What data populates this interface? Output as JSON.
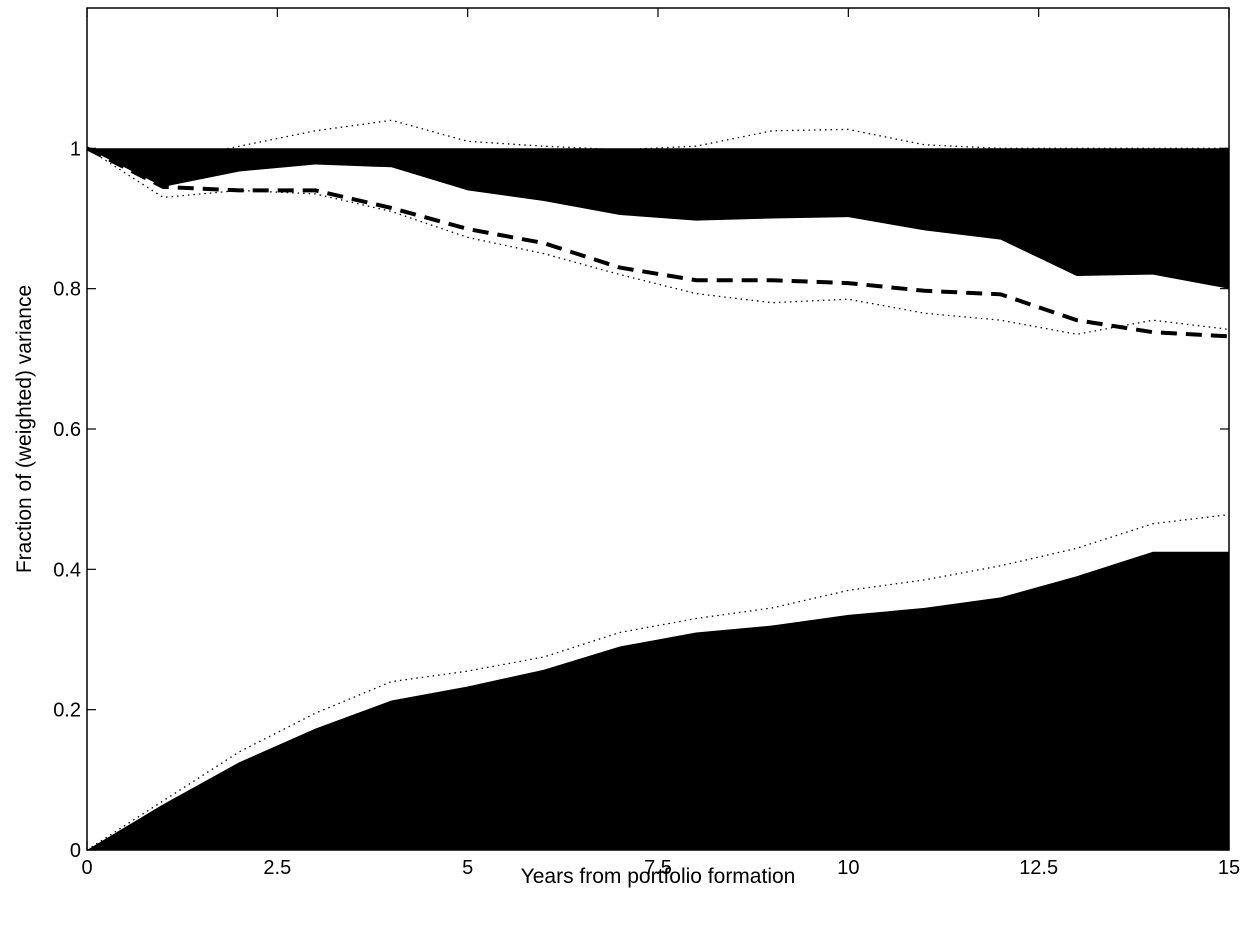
{
  "chart_data": {
    "type": "area",
    "title": "",
    "xlabel": "Years from portfolio formation",
    "ylabel": "Fraction of (weighted) variance",
    "xlim": [
      0,
      15
    ],
    "ylim": [
      0,
      1.2
    ],
    "x_ticks": [
      0,
      2.5,
      5,
      7.5,
      10,
      12.5,
      15
    ],
    "x_tick_labels": [
      "0",
      "2.5",
      "5",
      "7.5",
      "10",
      "12.5",
      "15"
    ],
    "y_ticks": [
      0,
      0.2,
      0.4,
      0.6,
      0.8,
      1.0
    ],
    "y_tick_labels": [
      "0",
      "0.2",
      "0.4",
      "0.6",
      "0.8",
      "1"
    ],
    "grid": false,
    "legend": "none",
    "x": [
      0,
      1,
      2,
      3,
      4,
      5,
      6,
      7,
      8,
      9,
      10,
      11,
      12,
      13,
      14,
      15
    ],
    "series": [
      {
        "style": "black-filled-area-from-0",
        "color": "#000000",
        "values": [
          0.0,
          0.065,
          0.125,
          0.173,
          0.213,
          0.233,
          0.257,
          0.29,
          0.31,
          0.32,
          0.335,
          0.345,
          0.36,
          0.39,
          0.425,
          0.425
        ]
      },
      {
        "style": "dotted-line",
        "color": "#000000",
        "values": [
          0.0,
          0.07,
          0.14,
          0.195,
          0.24,
          0.255,
          0.275,
          0.31,
          0.33,
          0.345,
          0.37,
          0.385,
          0.405,
          0.43,
          0.465,
          0.478
        ]
      },
      {
        "style": "black-filled-area-to-1",
        "color": "#000000",
        "values": [
          1.0,
          0.945,
          0.967,
          0.977,
          0.973,
          0.94,
          0.925,
          0.905,
          0.897,
          0.9,
          0.902,
          0.883,
          0.87,
          0.818,
          0.82,
          0.8
        ]
      },
      {
        "style": "dashed-line",
        "color": "#000000",
        "values": [
          1.0,
          0.945,
          0.94,
          0.94,
          0.915,
          0.885,
          0.865,
          0.83,
          0.812,
          0.812,
          0.808,
          0.797,
          0.792,
          0.755,
          0.738,
          0.732
        ]
      },
      {
        "style": "dotted-line",
        "color": "#000000",
        "values": [
          1.0,
          0.93,
          0.94,
          0.935,
          0.91,
          0.873,
          0.85,
          0.82,
          0.793,
          0.78,
          0.785,
          0.765,
          0.755,
          0.735,
          0.755,
          0.742
        ]
      },
      {
        "style": "dotted-line",
        "color": "#000000",
        "values": [
          1.0,
          0.98,
          1.003,
          1.025,
          1.04,
          1.01,
          1.003,
          0.998,
          1.003,
          1.025,
          1.027,
          1.005,
          1.0,
          1.0,
          1.0,
          1.0
        ]
      }
    ]
  }
}
